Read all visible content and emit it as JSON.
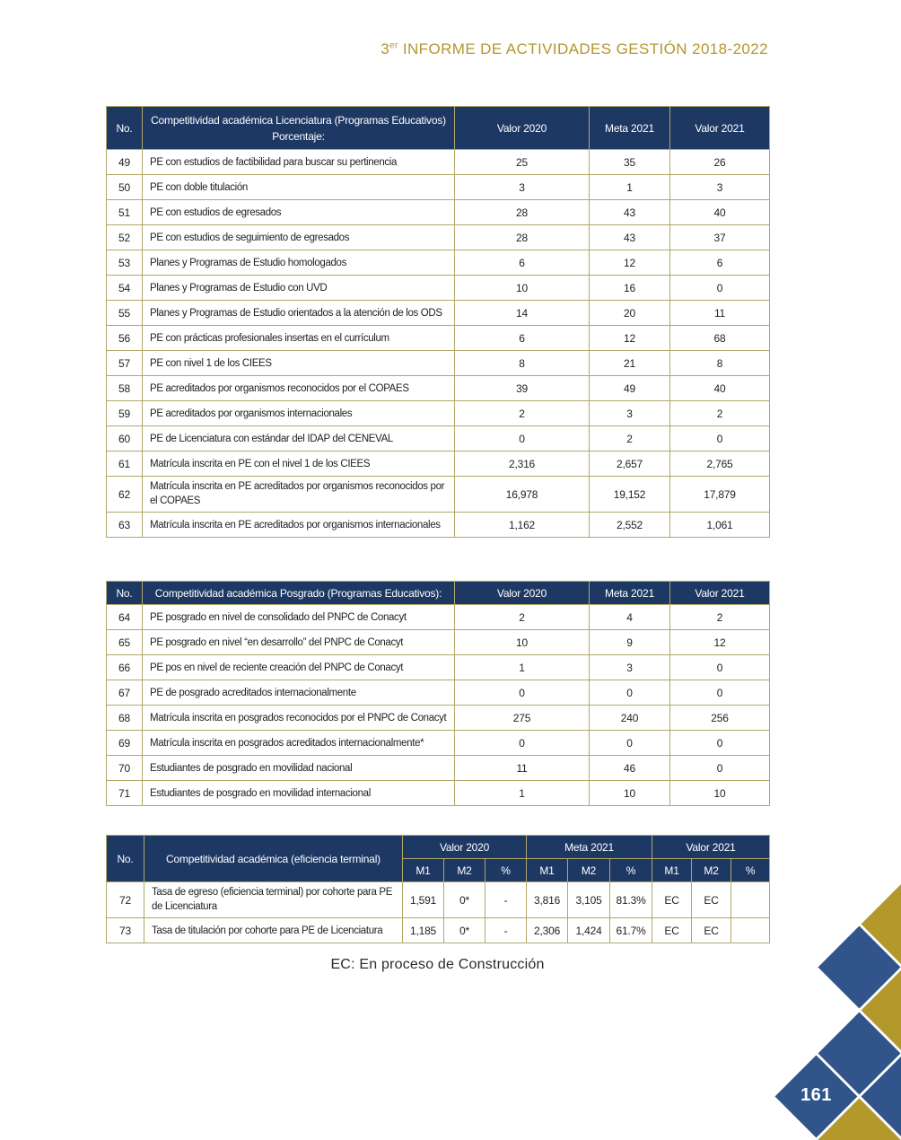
{
  "page": {
    "title_num": "3",
    "title_sup": "er",
    "title_rest": " INFORME DE ACTIVIDADES GESTIÓN 2018-2022",
    "footnote": "EC: En proceso de Construcción",
    "page_number": "161"
  },
  "colors": {
    "table_header_navy": "#1e3864",
    "table_border_khaki": "#b0a76a",
    "title_gold": "#b3962f",
    "diamond_gold": "#b3992b",
    "diamond_blue": "#31548b"
  },
  "tables": [
    {
      "id": "licenciatura",
      "headers": [
        "No.",
        "Competitividad académica Licenciatura (Programas Educativos)\nPorcentaje:",
        "Valor 2020",
        "Meta 2021",
        "Valor 2021"
      ],
      "rows": [
        [
          "49",
          "PE con estudios de factibilidad para buscar su pertinencia",
          "25",
          "35",
          "26"
        ],
        [
          "50",
          "PE con doble titulación",
          "3",
          "1",
          "3"
        ],
        [
          "51",
          "PE con estudios de egresados",
          "28",
          "43",
          "40"
        ],
        [
          "52",
          "PE con estudios de seguimiento de egresados",
          "28",
          "43",
          "37"
        ],
        [
          "53",
          "Planes y Programas de Estudio homologados",
          "6",
          "12",
          "6"
        ],
        [
          "54",
          "Planes y Programas de Estudio con UVD",
          "10",
          "16",
          "0"
        ],
        [
          "55",
          "Planes y Programas de Estudio orientados a la atención de los ODS",
          "14",
          "20",
          "11"
        ],
        [
          "56",
          "PE con prácticas profesionales insertas en el currículum",
          "6",
          "12",
          "68"
        ],
        [
          "57",
          "PE con nivel 1 de los CIEES",
          "8",
          "21",
          "8"
        ],
        [
          "58",
          "PE acreditados por organismos reconocidos por el COPAES",
          "39",
          "49",
          "40"
        ],
        [
          "59",
          "PE acreditados por organismos internacionales",
          "2",
          "3",
          "2"
        ],
        [
          "60",
          "PE de Licenciatura con estándar del IDAP del CENEVAL",
          "0",
          "2",
          "0"
        ],
        [
          "61",
          "Matrícula inscrita en PE con el nivel 1 de los CIEES",
          "2,316",
          "2,657",
          "2,765"
        ],
        [
          "62",
          "Matrícula inscrita en PE acreditados por organismos reconocidos por el COPAES",
          "16,978",
          "19,152",
          "17,879"
        ],
        [
          "63",
          "Matrícula inscrita en PE acreditados por organismos internacionales",
          "1,162",
          "2,552",
          "1,061"
        ]
      ]
    },
    {
      "id": "posgrado",
      "headers": [
        "No.",
        "Competitividad académica Posgrado (Programas Educativos):",
        "Valor 2020",
        "Meta 2021",
        "Valor 2021"
      ],
      "rows": [
        [
          "64",
          "PE posgrado en nivel de consolidado del PNPC de Conacyt",
          "2",
          "4",
          "2"
        ],
        [
          "65",
          "PE posgrado en nivel “en desarrollo” del PNPC de Conacyt",
          "10",
          "9",
          "12"
        ],
        [
          "66",
          "PE pos en nivel de reciente creación del PNPC de Conacyt",
          "1",
          "3",
          "0"
        ],
        [
          "67",
          "PE de posgrado acreditados internacionalmente",
          "0",
          "0",
          "0"
        ],
        [
          "68",
          "Matrícula inscrita en posgrados reconocidos por el PNPC de Conacyt",
          "275",
          "240",
          "256"
        ],
        [
          "69",
          "Matrícula inscrita en posgrados acreditados internacionalmente*",
          "0",
          "0",
          "0"
        ],
        [
          "70",
          "Estudiantes de posgrado en movilidad nacional",
          "11",
          "46",
          "0"
        ],
        [
          "71",
          "Estudiantes de posgrado en movilidad internacional",
          "1",
          "10",
          "10"
        ]
      ]
    },
    {
      "id": "eficiencia-terminal",
      "group_headers": [
        "No.",
        "Competitividad académica (eficiencia terminal)",
        "Valor 2020",
        "Meta 2021",
        "Valor 2021"
      ],
      "sub_headers": [
        "M1",
        "M2",
        "%",
        "M1",
        "M2",
        "%",
        "M1",
        "M2",
        "%"
      ],
      "rows": [
        [
          "72",
          "Tasa de egreso (eficiencia terminal) por cohorte para PE de Licenciatura",
          "1,591",
          "0*",
          "-",
          "3,816",
          "3,105",
          "81.3%",
          "EC",
          "EC",
          ""
        ],
        [
          "73",
          "Tasa de titulación por cohorte para PE de Licenciatura",
          "1,185",
          "0*",
          "-",
          "2,306",
          "1,424",
          "61.7%",
          "EC",
          "EC",
          ""
        ]
      ]
    }
  ]
}
